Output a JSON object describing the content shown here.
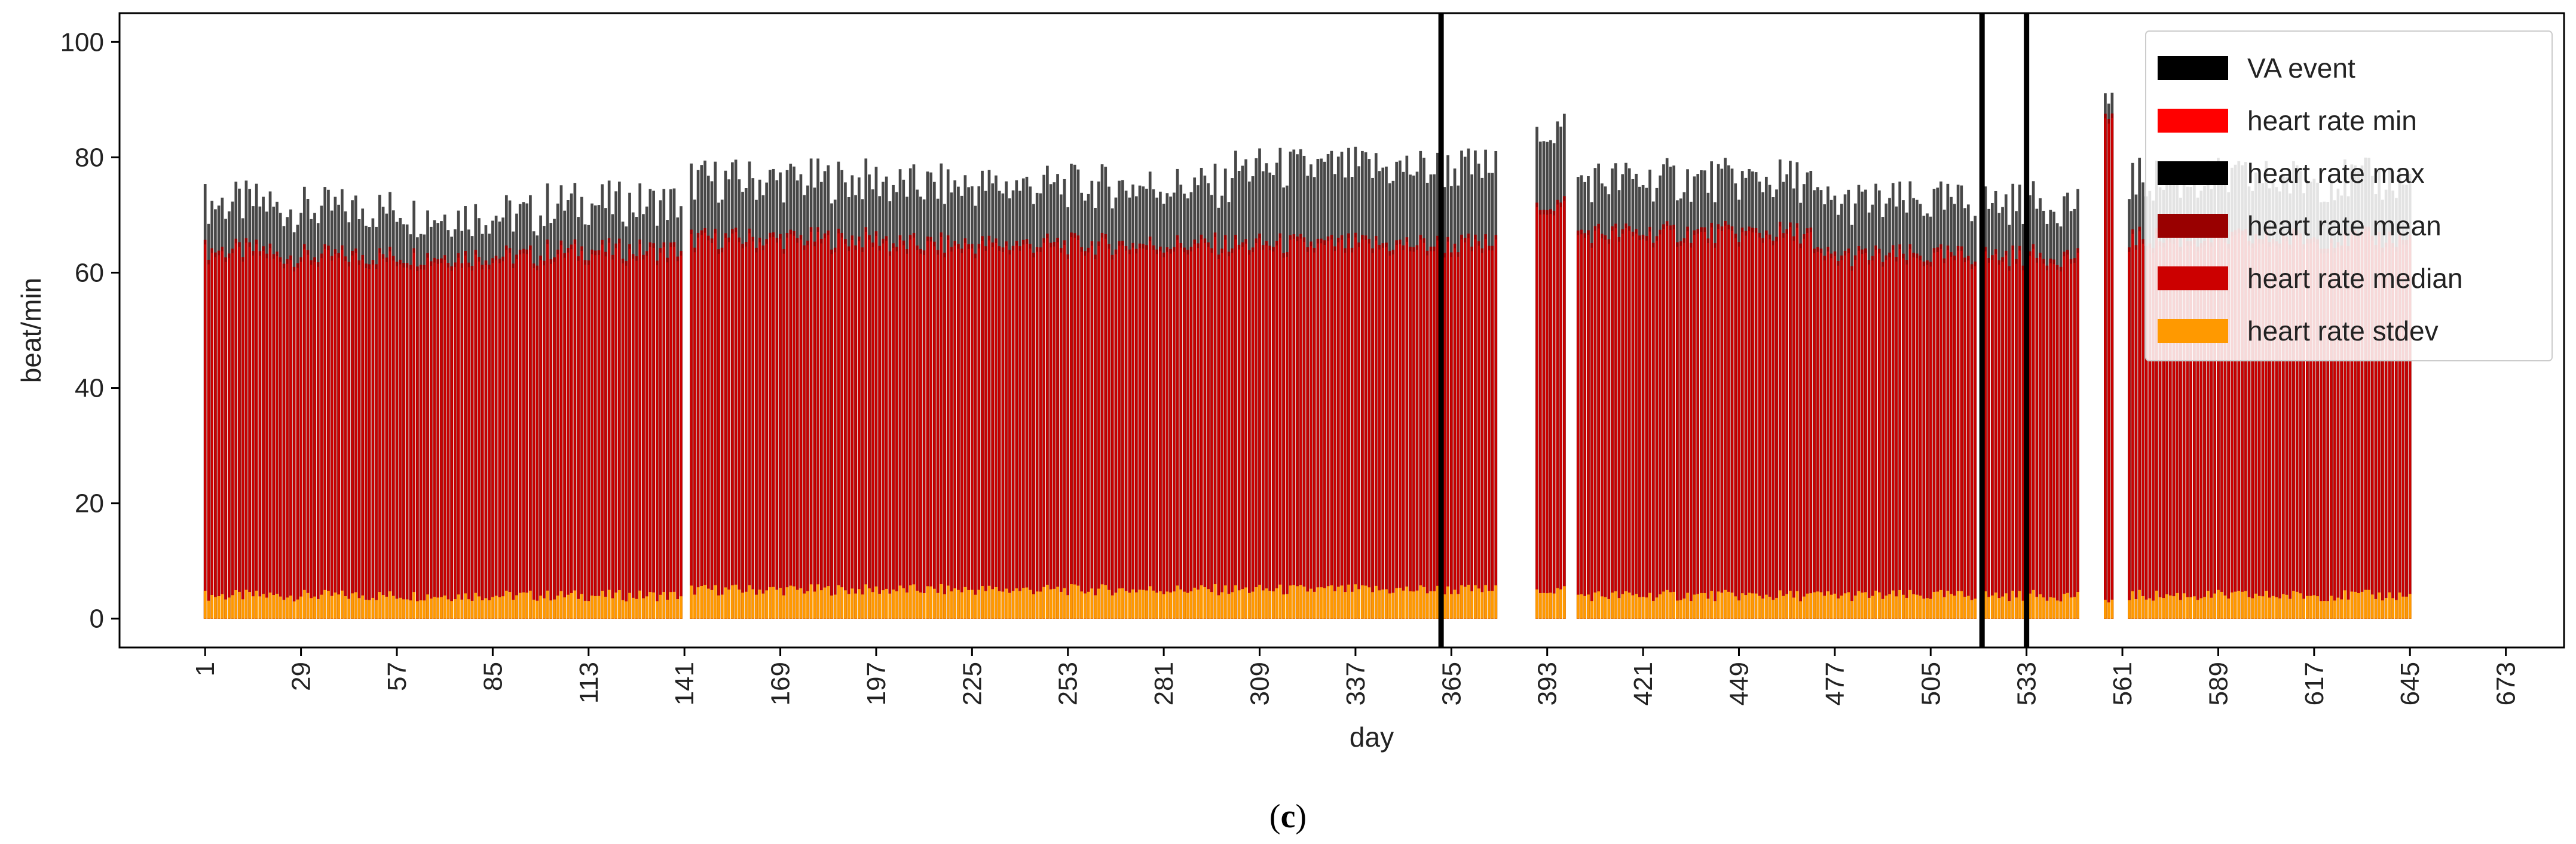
{
  "chart_data": {
    "type": "bar",
    "xlabel": "day",
    "ylabel": "beat/min",
    "caption_pre": "(",
    "caption_letter": "c",
    "caption_post": ")",
    "xlim": [
      -24,
      690
    ],
    "ylim": [
      -5,
      105
    ],
    "x_ticks": [
      1,
      29,
      57,
      85,
      113,
      141,
      169,
      197,
      225,
      253,
      281,
      309,
      337,
      365,
      393,
      421,
      449,
      477,
      505,
      533,
      561,
      589,
      617,
      645,
      673
    ],
    "y_ticks": [
      0,
      20,
      40,
      60,
      80,
      100
    ],
    "grid": false,
    "legend_position": "top-right",
    "legend": [
      {
        "label": "VA event",
        "color": "#000000"
      },
      {
        "label": "heart rate min",
        "color": "#ff0000"
      },
      {
        "label": "heart rate max",
        "color": "#000000"
      },
      {
        "label": "heart rate mean",
        "color": "#990000"
      },
      {
        "label": "heart rate median",
        "color": "#cc0000"
      },
      {
        "label": "heart rate stdev",
        "color": "#ff9900"
      }
    ],
    "va_event_days": [
      362,
      520,
      533
    ],
    "active_day_ranges": [
      [
        1,
        140
      ],
      [
        143,
        378
      ],
      [
        390,
        398
      ],
      [
        402,
        518
      ],
      [
        521,
        532
      ],
      [
        534,
        548
      ],
      [
        556,
        558
      ],
      [
        563,
        645
      ]
    ],
    "level_segments": [
      {
        "from": 1,
        "to": 20,
        "max": 72,
        "mean": 64,
        "stdev": 4
      },
      {
        "from": 20,
        "to": 60,
        "max": 71,
        "mean": 63,
        "stdev": 4
      },
      {
        "from": 60,
        "to": 100,
        "max": 70,
        "mean": 63,
        "stdev": 4
      },
      {
        "from": 100,
        "to": 140,
        "max": 72,
        "mean": 64,
        "stdev": 4
      },
      {
        "from": 143,
        "to": 200,
        "max": 76,
        "mean": 66,
        "stdev": 5
      },
      {
        "from": 200,
        "to": 300,
        "max": 75,
        "mean": 65,
        "stdev": 5
      },
      {
        "from": 300,
        "to": 378,
        "max": 78,
        "mean": 65,
        "stdev": 5
      },
      {
        "from": 390,
        "to": 398,
        "max": 85,
        "mean": 72,
        "stdev": 5
      },
      {
        "from": 402,
        "to": 470,
        "max": 76,
        "mean": 67,
        "stdev": 4
      },
      {
        "from": 470,
        "to": 548,
        "max": 72,
        "mean": 63,
        "stdev": 4
      },
      {
        "from": 556,
        "to": 558,
        "max": 90,
        "mean": 87,
        "stdev": 3
      },
      {
        "from": 563,
        "to": 645,
        "max": 76,
        "mean": 66,
        "stdev": 4
      }
    ],
    "series_colors": {
      "max": "#000000",
      "min": "#ff0000",
      "mean": "#990000",
      "median": "#cc0000",
      "stdev": "#ff9900"
    }
  }
}
